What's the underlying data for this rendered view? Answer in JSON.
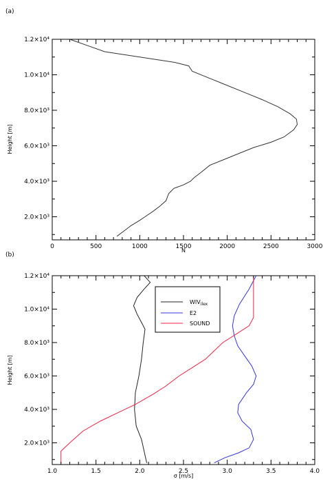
{
  "chart_data": [
    {
      "panel_label": "(a)",
      "type": "line",
      "xlabel": "N",
      "ylabel": "Height [m]",
      "xlim": [
        0,
        3000
      ],
      "ylim": [
        700,
        12000
      ],
      "x_ticks": [
        "0",
        "500",
        "1000",
        "1500",
        "2000",
        "2500",
        "3000"
      ],
      "y_ticks": [
        "2.0×10³",
        "4.0×10³",
        "6.0×10³",
        "8.0×10³",
        "1.0×10⁴",
        "1.2×10⁴"
      ],
      "grid": false,
      "series": [
        {
          "color": "#333333",
          "x": [
            740,
            820,
            900,
            1000,
            1060,
            1150,
            1230,
            1300,
            1330,
            1390,
            1500,
            1580,
            1620,
            1700,
            1800,
            1950,
            2100,
            2300,
            2500,
            2650,
            2760,
            2800,
            2790,
            2720,
            2580,
            2400,
            2250,
            2150,
            1950,
            1800,
            1600,
            1560,
            1400,
            1000,
            600,
            200
          ],
          "y": [
            900,
            1200,
            1500,
            1800,
            2000,
            2300,
            2600,
            2900,
            3300,
            3600,
            3800,
            4000,
            4200,
            4500,
            4900,
            5200,
            5500,
            5900,
            6200,
            6500,
            6900,
            7200,
            7500,
            7800,
            8200,
            8600,
            8900,
            9100,
            9500,
            9800,
            10200,
            10500,
            10700,
            11000,
            11300,
            12000
          ]
        }
      ]
    },
    {
      "panel_label": "(b)",
      "type": "line",
      "xlabel": "σ [m/s]",
      "ylabel": "Height [m]",
      "xlim": [
        1.0,
        4.0
      ],
      "ylim": [
        700,
        12000
      ],
      "x_ticks": [
        "1.0",
        "1.5",
        "2.0",
        "2.5",
        "3.0",
        "3.5",
        "4.0"
      ],
      "y_ticks": [
        "2.0×10³",
        "4.0×10³",
        "6.0×10³",
        "8.0×10³",
        "1.0×10⁴",
        "1.2×10⁴"
      ],
      "grid": false,
      "legend_position": "top-center",
      "series": [
        {
          "name": "WIV",
          "name_sub": "ilex",
          "color": "#222222",
          "x": [
            2.08,
            2.05,
            2.02,
            1.96,
            1.94,
            1.95,
            1.99,
            2.02,
            2.04,
            2.06,
            2.02,
            1.97,
            1.93,
            1.97,
            2.05,
            2.12,
            2.05
          ],
          "y": [
            800,
            1500,
            2200,
            3000,
            4000,
            5000,
            6000,
            7000,
            8000,
            8800,
            9200,
            9700,
            10200,
            10700,
            11200,
            11600,
            12000
          ]
        },
        {
          "name": "E2",
          "color": "#3333dd",
          "x": [
            2.85,
            2.97,
            3.13,
            3.25,
            3.3,
            3.27,
            3.17,
            3.12,
            3.13,
            3.22,
            3.3,
            3.33,
            3.28,
            3.2,
            3.12,
            3.08,
            3.06,
            3.08,
            3.14,
            3.25,
            3.33
          ],
          "y": [
            800,
            1100,
            1400,
            1700,
            2200,
            2800,
            3300,
            3800,
            4300,
            5000,
            5500,
            6000,
            6600,
            7200,
            7800,
            8400,
            9000,
            9600,
            10300,
            11200,
            12000
          ]
        },
        {
          "name": "SOUND",
          "color": "#ee2244",
          "x": [
            1.1,
            1.1,
            1.2,
            1.35,
            1.55,
            1.75,
            1.95,
            2.15,
            2.3,
            2.45,
            2.6,
            2.75,
            2.85,
            2.95,
            3.1,
            3.25,
            3.3,
            3.3,
            3.3,
            3.3
          ],
          "y": [
            800,
            1500,
            2000,
            2700,
            3300,
            3800,
            4300,
            4900,
            5400,
            6000,
            6500,
            7000,
            7500,
            8000,
            8500,
            9000,
            9500,
            10500,
            11200,
            12000
          ]
        }
      ]
    }
  ]
}
